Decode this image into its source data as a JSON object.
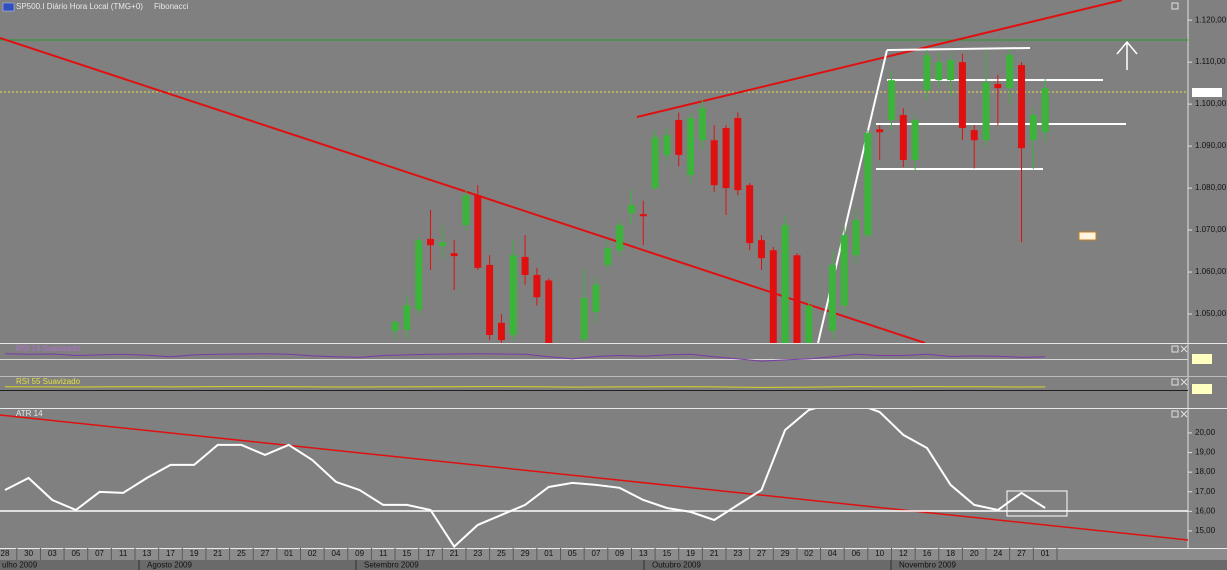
{
  "chart_data": [
    {
      "type": "candlestick",
      "title": "SP500.I Diário Hora Local (TMG+0)",
      "menu_label": "Fibonacci",
      "open": [
        1046,
        1046.2,
        1051,
        1067.9,
        1066.2,
        1064.5,
        1071.2,
        1078.3,
        1061.7,
        1047.9,
        1045,
        1063.6,
        1059.3,
        1058,
        null,
        null,
        1044,
        1050.5,
        1061.7,
        1065.2,
        1074,
        1073.8,
        1080,
        1087.9,
        1096.2,
        1083.1,
        1091.4,
        1091.4,
        1094.3,
        1096.7,
        1080.7,
        1067.6,
        1065.2,
        1043,
        1064,
        1043,
        null,
        1046,
        1052,
        1064,
        1068.8,
        1094,
        1096.2,
        1097.4,
        1086.7,
        1103.3,
        1105.7,
        1105.7,
        1110,
        1093.8,
        1091.4,
        1104.8,
        1103.8,
        1109.3,
        1091.4,
        1093.3
      ],
      "high": [
        1048.6,
        1054.5,
        1068.3,
        1074.8,
        1071,
        1067.6,
        1079.5,
        1080.7,
        1064,
        1050,
        1067.6,
        1068.8,
        1061,
        1058.5,
        null,
        null,
        1060.5,
        1058.6,
        1067.6,
        1072.4,
        1079.5,
        1077,
        1093.8,
        1094.5,
        1098,
        1098,
        1101,
        1095,
        1095,
        1098,
        1081.2,
        1068.8,
        1066,
        1073.6,
        1064.5,
        1053,
        null,
        1065.2,
        1071,
        1075,
        1093.8,
        1095,
        1108,
        1099,
        1097.4,
        1112.9,
        1112.4,
        1112,
        1112,
        1095,
        1113,
        1107,
        1113,
        1110,
        1099,
        1106
      ],
      "low": [
        1044,
        1044,
        1049.8,
        1060.5,
        1063.3,
        1055.7,
        1070,
        1060.5,
        1043.8,
        1043,
        1043.5,
        1057,
        1052,
        1043,
        null,
        null,
        1043,
        1048,
        1060.5,
        1063.8,
        1071.2,
        1066.4,
        1079.5,
        1086.4,
        1085.2,
        1081.2,
        1089,
        1079,
        1073.6,
        1078.3,
        1065.2,
        1060.5,
        1043,
        1043,
        1043,
        1043,
        null,
        1044,
        1050,
        1062,
        1068,
        1086.7,
        1093.8,
        1085,
        1084,
        1101,
        1104,
        1102,
        1091.4,
        1084.7,
        1090,
        1095,
        1100,
        1067.1,
        1084.5,
        1091
      ],
      "close": [
        1048.1,
        1052.1,
        1067.6,
        1066.4,
        1067.1,
        1063.8,
        1078.3,
        1061,
        1045,
        1043.8,
        1064,
        1059.3,
        1054,
        1043,
        null,
        null,
        1053.8,
        1057,
        1065.7,
        1071.2,
        1076,
        1073.3,
        1092.1,
        1092.6,
        1087.9,
        1096.7,
        1099,
        1080.7,
        1080,
        1079.5,
        1066.9,
        1063.3,
        1043,
        1071.2,
        1043,
        1052,
        null,
        1061.7,
        1068.8,
        1072.4,
        1093.1,
        1093.3,
        1105.7,
        1086.7,
        1096.2,
        1111.7,
        1110,
        1110.5,
        1094.3,
        1091.4,
        1105.2,
        1103.8,
        1111.7,
        1089.5,
        1097.4,
        1103.8
      ],
      "up_color": "#3cb43c",
      "down_color": "#e01010",
      "ylim": [
        1043.1,
        1124.8
      ],
      "yticks": [
        {
          "value": 1120,
          "label": "1.120,00"
        },
        {
          "value": 1110,
          "label": "1.110,00"
        },
        {
          "value": 1100,
          "label": "1.100,00"
        },
        {
          "value": 1090,
          "label": "1.090,00"
        },
        {
          "value": 1080,
          "label": "1.080,00"
        },
        {
          "value": 1070,
          "label": "1.070,00"
        },
        {
          "value": 1060,
          "label": "1.060,00"
        },
        {
          "value": 1050,
          "label": "1.050,00"
        }
      ]
    },
    {
      "type": "line",
      "title": "RSI 14 Suavizado",
      "color": "#7a3aa8",
      "ylim": [
        0,
        100
      ],
      "values": [
        72,
        70,
        71,
        66,
        68,
        70,
        67,
        62,
        68,
        70,
        71,
        72,
        70,
        65,
        62,
        60,
        66,
        68,
        70,
        71,
        72,
        71,
        70,
        62,
        55,
        63,
        66,
        64,
        68,
        70,
        62,
        55,
        48,
        52,
        55,
        62,
        70,
        66,
        66,
        70,
        63,
        65,
        64,
        60,
        62
      ]
    },
    {
      "type": "line",
      "title": "RSI 55 Suavizado",
      "color": "#d8d820",
      "ylim": [
        0,
        100
      ],
      "values": [
        25,
        24,
        24,
        23,
        24,
        25,
        25,
        24,
        25,
        26,
        26,
        26,
        25,
        24,
        23,
        23,
        24,
        24,
        25,
        25,
        26,
        26,
        25,
        24,
        22,
        23,
        24,
        24,
        25,
        25,
        24,
        22,
        20,
        21,
        22,
        24,
        26,
        25,
        25,
        26,
        25,
        25,
        24,
        23,
        24
      ]
    },
    {
      "type": "line",
      "title": "ATR 14",
      "color": "#ffffff",
      "categories": [
        "28",
        "30",
        "03",
        "05",
        "07",
        "11",
        "13",
        "17",
        "19",
        "21",
        "25",
        "27",
        "01",
        "02",
        "04",
        "09",
        "11",
        "15",
        "17",
        "21",
        "23",
        "25",
        "29",
        "01",
        "05",
        "07",
        "09",
        "13",
        "15",
        "19",
        "21",
        "23",
        "27",
        "29",
        "02",
        "04",
        "06",
        "10",
        "12",
        "16",
        "18",
        "20",
        "24",
        "27",
        "01"
      ],
      "months": [
        "ulho 2009",
        "Agosto 2009",
        "Setembro 2009",
        "Outubro 2009",
        "Novembro 2009"
      ],
      "values": [
        17.09,
        17.7,
        16.58,
        16.07,
        16.99,
        16.94,
        17.7,
        18.37,
        18.37,
        19.39,
        19.39,
        18.88,
        19.39,
        18.62,
        17.5,
        17.09,
        16.33,
        16.33,
        16.07,
        14.2,
        15.31,
        15.82,
        16.33,
        17.24,
        17.45,
        17.35,
        17.2,
        16.58,
        16.17,
        15.97,
        15.56,
        16.33,
        17.09,
        20.15,
        21.17,
        21.5,
        21.5,
        21.07,
        19.9,
        19.23,
        17.35,
        16.33,
        16.07,
        16.94,
        16.17
      ],
      "ylim": [
        14.13,
        21.17
      ],
      "yticks": [
        {
          "value": 20,
          "label": "20,00"
        },
        {
          "value": 19,
          "label": "19,00"
        },
        {
          "value": 18,
          "label": "18,00"
        },
        {
          "value": 17,
          "label": "17,00"
        },
        {
          "value": 16,
          "label": "16,00"
        },
        {
          "value": 15,
          "label": "15,00"
        }
      ]
    }
  ]
}
